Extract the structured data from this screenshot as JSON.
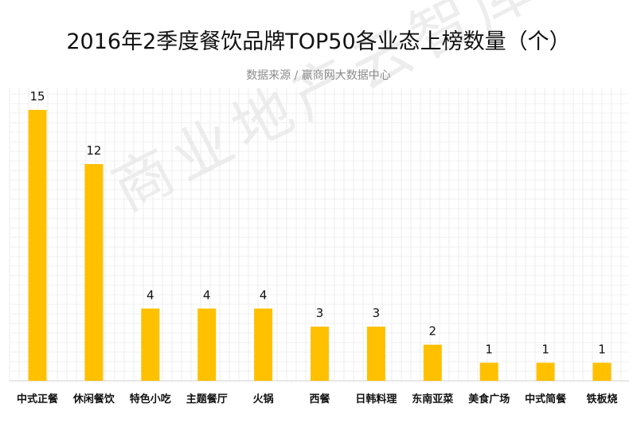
{
  "title": "2016年2季度餐饮品牌TOP50各业态上榜数量（个）",
  "subtitle": "数据来源 / 赢商网大数据中心",
  "watermark": "商业地产云智库",
  "colors": {
    "bar": "#FFC000",
    "grid": "#e3e3e3",
    "axis": "#d0d0d0",
    "text": "#111111"
  },
  "chart_data": {
    "type": "bar",
    "title": "2016年2季度餐饮品牌TOP50各业态上榜数量（个）",
    "subtitle": "数据来源 / 赢商网大数据中心",
    "xlabel": "",
    "ylabel": "",
    "categories": [
      "中式正餐",
      "休闲餐饮",
      "特色小吃",
      "主题餐厅",
      "火锅",
      "西餐",
      "日韩料理",
      "东南亚菜",
      "美食广场",
      "中式简餐",
      "铁板烧"
    ],
    "values": [
      15,
      12,
      4,
      4,
      4,
      3,
      3,
      2,
      1,
      1,
      1
    ],
    "ylim": [
      0,
      16
    ],
    "grid": true,
    "data_labels": true
  }
}
